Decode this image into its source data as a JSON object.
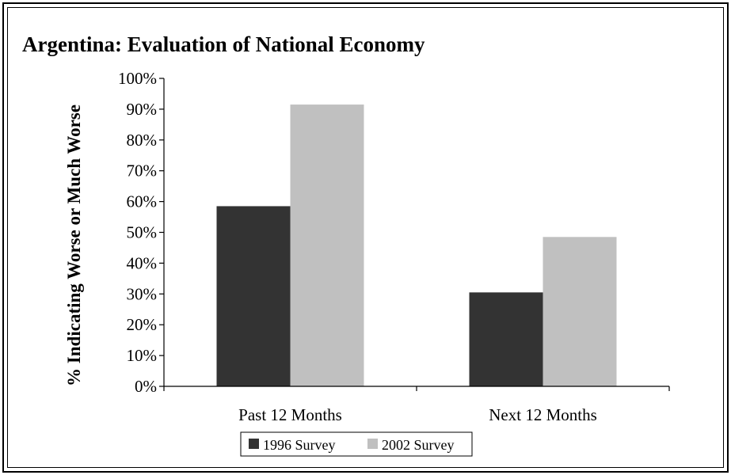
{
  "chart_data": {
    "type": "bar",
    "title": "Argentina: Evaluation of National Economy",
    "xlabel": "",
    "ylabel": "% Indicating Worse or Much Worse",
    "categories": [
      "Past 12 Months",
      "Next 12 Months"
    ],
    "series": [
      {
        "name": "1996 Survey",
        "color": "#333333",
        "values": [
          58.5,
          30.5
        ]
      },
      {
        "name": "2002 Survey",
        "color": "#c0c0c0",
        "values": [
          91.5,
          48.5
        ]
      }
    ],
    "ylim": [
      0,
      100
    ],
    "y_ticks": [
      "0%",
      "10%",
      "20%",
      "30%",
      "40%",
      "50%",
      "60%",
      "70%",
      "80%",
      "90%",
      "100%"
    ],
    "grid": false,
    "legend_position": "bottom"
  }
}
